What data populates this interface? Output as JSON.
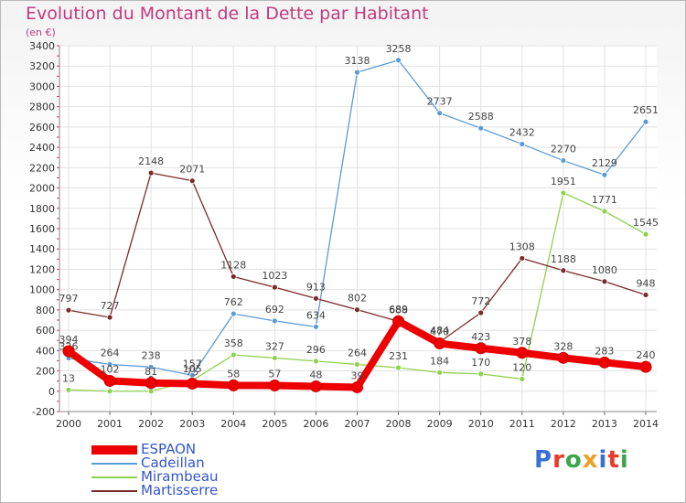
{
  "title": "Evolution du Montant de la Dette par Habitant",
  "subtitle": "(en €)",
  "brand": {
    "text": "Proxiti",
    "colors": [
      "#3a6fd8",
      "#e83a2a",
      "#3aa64a",
      "#f0a020",
      "#3a6fd8",
      "#e83a2a",
      "#3aa64a"
    ]
  },
  "chart_data": {
    "type": "line",
    "title": "Evolution du Montant de la Dette par Habitant",
    "subtitle": "(en €)",
    "x": [
      "2000",
      "2001",
      "2002",
      "2003",
      "2004",
      "2005",
      "2006",
      "2007",
      "2008",
      "2009",
      "2010",
      "2011",
      "2012",
      "2013",
      "2014"
    ],
    "ylim": [
      -200,
      3400
    ],
    "yticks": [
      -200,
      0,
      200,
      400,
      600,
      800,
      1000,
      1200,
      1400,
      1600,
      1800,
      2000,
      2200,
      2400,
      2600,
      2800,
      3000,
      3200,
      3400
    ],
    "grid": true,
    "legend_position": "bottom-left",
    "series": [
      {
        "name": "Cadeillan",
        "color": "#5b9bd5",
        "values": [
          326,
          264,
          238,
          157,
          762,
          692,
          634,
          3138,
          3258,
          2737,
          2588,
          2432,
          2270,
          2129,
          2651
        ],
        "labels": [
          "326",
          "264",
          "238",
          "157",
          "762",
          "692",
          "634",
          "3138",
          "3258",
          "2737",
          "2588",
          "2432",
          "2270",
          "2129",
          "2651"
        ]
      },
      {
        "name": "Mirambeau",
        "color": "#8fd14f",
        "values": [
          13,
          0,
          0,
          105,
          358,
          327,
          296,
          264,
          231,
          184,
          170,
          120,
          1951,
          1771,
          1545
        ],
        "labels": [
          "13",
          "0",
          "0",
          "105",
          "358",
          "327",
          "296",
          "264",
          "231",
          "184",
          "170",
          "120",
          "1951",
          "1771",
          "1545"
        ]
      },
      {
        "name": "Martisserre",
        "color": "#7b2a2a",
        "values": [
          797,
          727,
          2148,
          2071,
          1128,
          1023,
          913,
          802,
          688,
          484,
          772,
          1308,
          1188,
          1080,
          948
        ],
        "labels": [
          "797",
          "727",
          "2148",
          "2071",
          "1128",
          "1023",
          "913",
          "802",
          "688",
          "484",
          "772",
          "1308",
          "1188",
          "1080",
          "948"
        ]
      },
      {
        "name": "ESPAON",
        "color": "#ee0000",
        "values": [
          394,
          102,
          81,
          75,
          58,
          57,
          48,
          39,
          689,
          470,
          423,
          378,
          328,
          283,
          240
        ],
        "labels": [
          "394",
          "102",
          "81",
          "75",
          "58",
          "57",
          "48",
          "39",
          "689",
          "470",
          "423",
          "378",
          "328",
          "283",
          "240"
        ]
      }
    ]
  },
  "legend": [
    {
      "name": "ESPAON",
      "color": "#ee0000"
    },
    {
      "name": "Cadeillan",
      "color": "#5b9bd5"
    },
    {
      "name": "Mirambeau",
      "color": "#8fd14f"
    },
    {
      "name": "Martisserre",
      "color": "#7b2a2a"
    }
  ]
}
